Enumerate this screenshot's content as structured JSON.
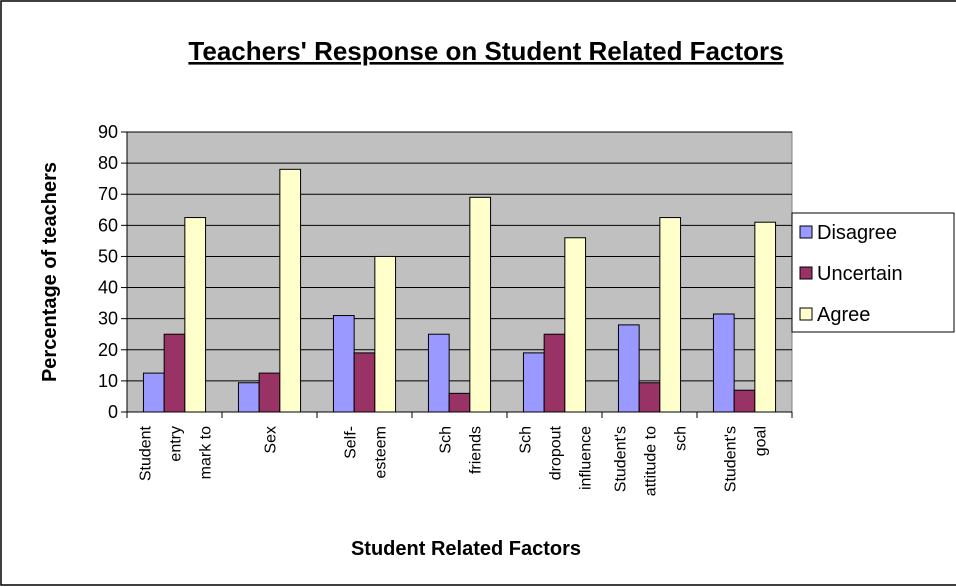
{
  "chart_data": {
    "type": "bar",
    "title": "Teachers' Response on Student Related Factors",
    "xlabel": "Student Related Factors",
    "ylabel": "Percentage of teachers",
    "categories": [
      "Student\nentry\nmark to",
      "Sex",
      "Self-\nesteem",
      "Sch\nfriends",
      "Sch\ndropout\ninfluence",
      "Student's\nattitude to\nsch",
      "Student's\ngoal"
    ],
    "series": [
      {
        "name": "Disagree",
        "color": "#9999ff",
        "values": [
          12.5,
          9.4,
          31,
          25,
          19,
          28,
          31.5
        ]
      },
      {
        "name": "Uncertain",
        "color": "#993366",
        "values": [
          25,
          12.5,
          19,
          6,
          25,
          9.4,
          7
        ]
      },
      {
        "name": "Agree",
        "color": "#ffffcc",
        "values": [
          62.5,
          78,
          50,
          69,
          56,
          62.5,
          61
        ]
      }
    ],
    "ylim": [
      0,
      90
    ],
    "yticks": [
      0,
      10,
      20,
      30,
      40,
      50,
      60,
      70,
      80,
      90
    ],
    "grid": true,
    "legend": "right"
  }
}
